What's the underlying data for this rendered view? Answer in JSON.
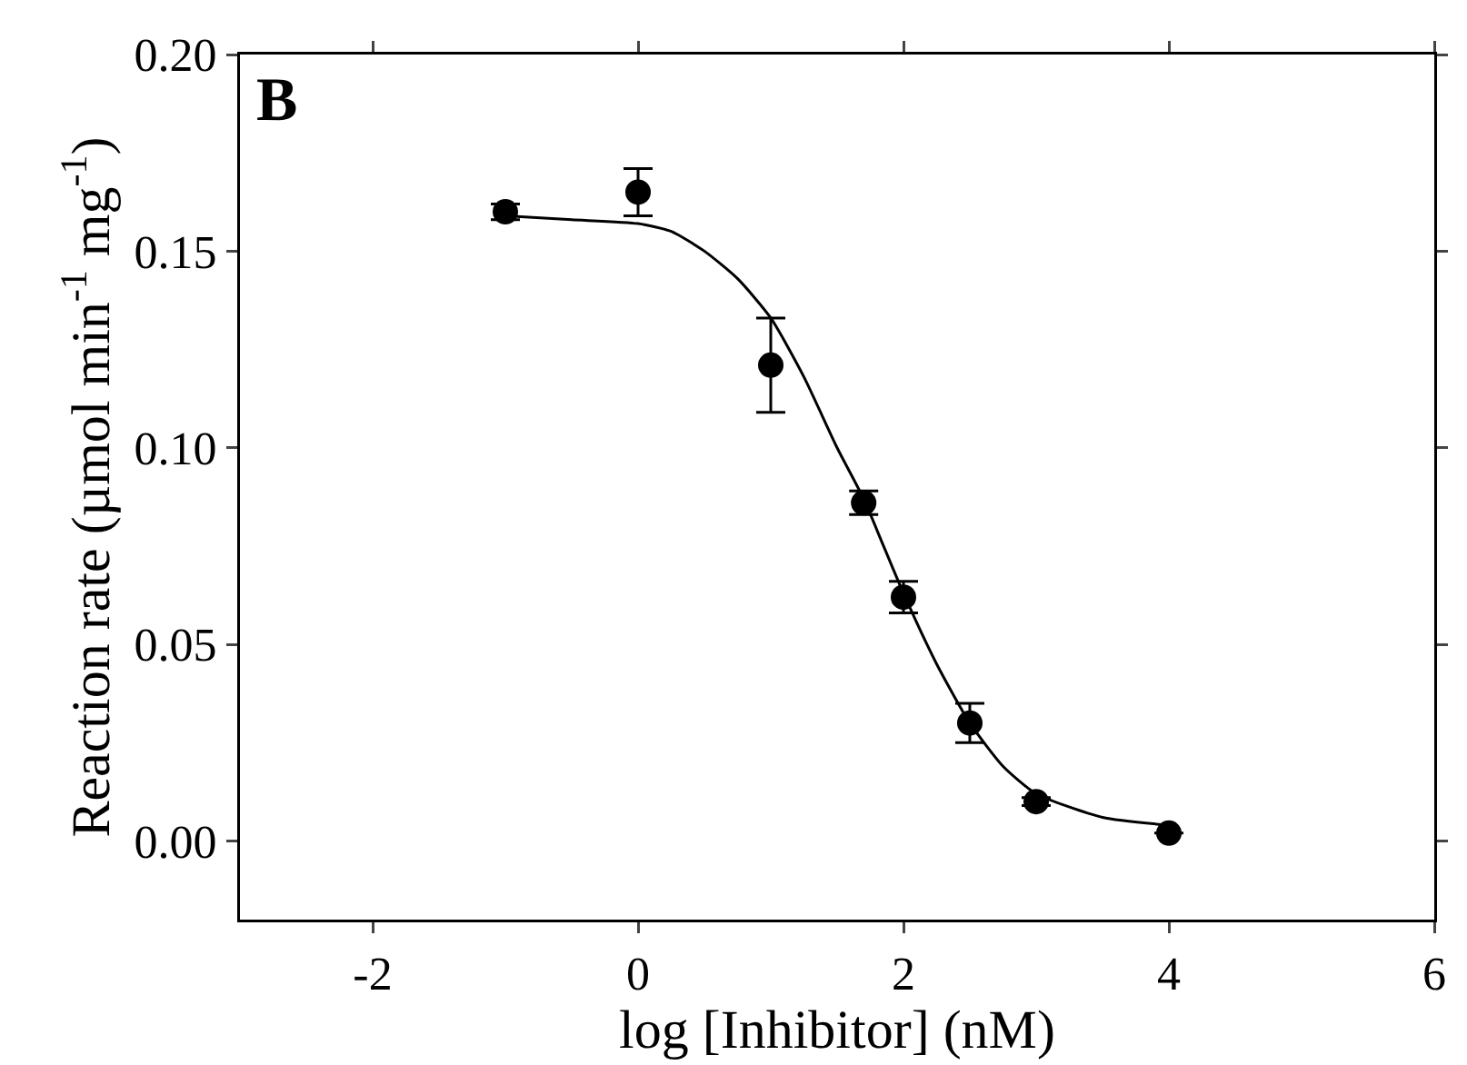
{
  "chart_data": {
    "type": "scatter",
    "xlabel": "log [Inhibitor] (nM)",
    "ylabel": "Reaction rate (µmol min$^{-1}$ mg$^{-1}$)",
    "annotations": [
      "B"
    ],
    "xlim": [
      -3,
      6
    ],
    "xticks": [
      -2,
      0,
      2,
      4,
      6
    ],
    "ylim": [
      -0.02,
      0.2
    ],
    "yticks": [
      {
        "value": 0,
        "label": "0.00"
      },
      0.05,
      {
        "value": 0.1,
        "label": "0.10"
      },
      0.15,
      {
        "value": 0.2,
        "label": "0.20"
      }
    ],
    "grid": false,
    "legend": false,
    "marker": "circle",
    "series": [
      {
        "type": "line",
        "color": "#000000",
        "line_style": "solid",
        "marker": "none",
        "x": [
          -1,
          -0.5,
          0,
          0.25,
          0.5,
          0.75,
          1,
          1.25,
          1.5,
          1.7,
          1.85,
          2,
          2.25,
          2.5,
          2.75,
          3,
          3.5,
          4
        ],
        "values": [
          0.159,
          0.158,
          0.157,
          0.155,
          0.15,
          0.143,
          0.133,
          0.118,
          0.1,
          0.087,
          0.075,
          0.063,
          0.045,
          0.03,
          0.019,
          0.012,
          0.006,
          0.004
        ]
      },
      {
        "color": "#000000",
        "x": [
          -1,
          0,
          1,
          1.7,
          2,
          2.5,
          3,
          4
        ],
        "values": [
          0.16,
          0.165,
          0.121,
          0.086,
          0.062,
          0.03,
          0.01,
          0.002
        ],
        "errors": [
          0.002,
          0.006,
          0.012,
          0.003,
          0.004,
          0.005,
          0.001,
          null
        ]
      }
    ]
  }
}
